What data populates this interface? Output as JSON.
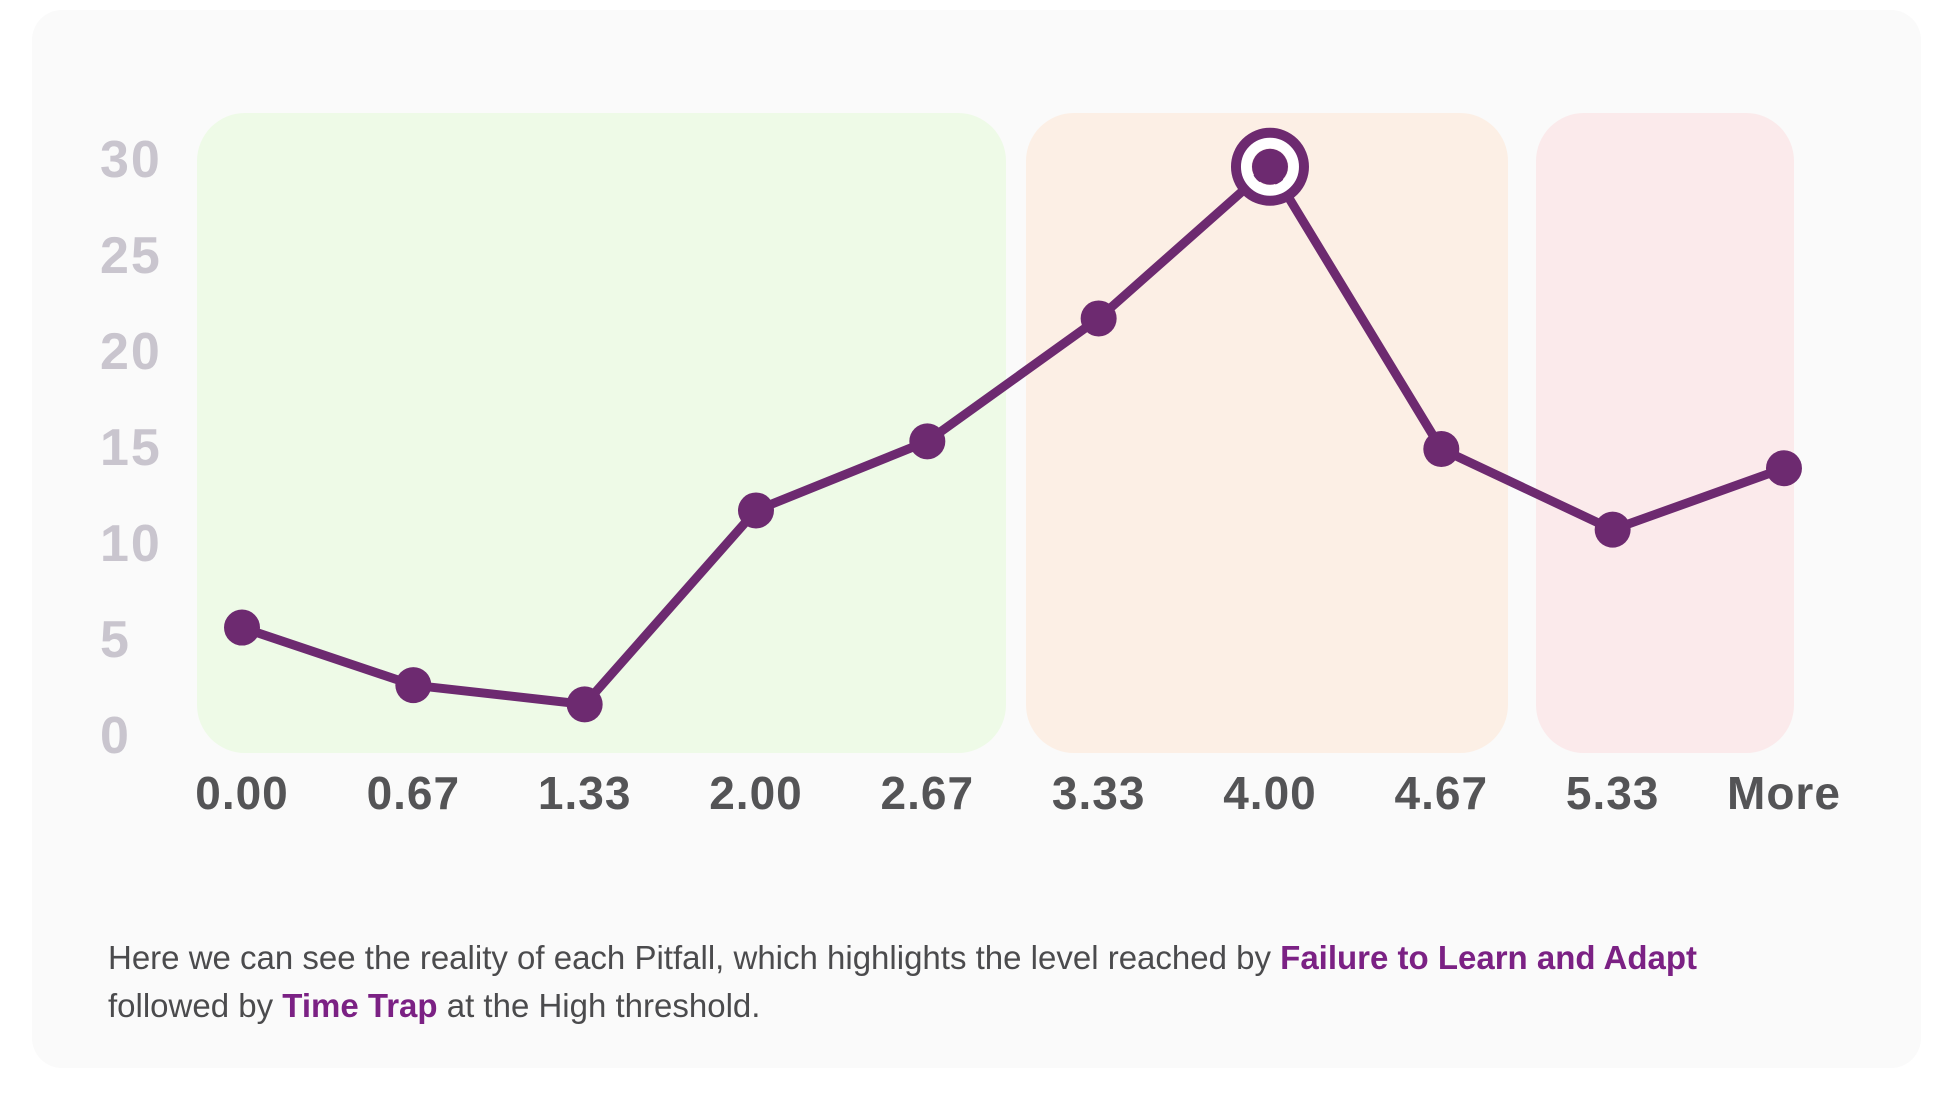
{
  "chart_data": {
    "type": "line",
    "categories": [
      "0.00",
      "0.67",
      "1.33",
      "2.00",
      "2.67",
      "3.33",
      "4.00",
      "4.67",
      "5.33",
      "More"
    ],
    "values": [
      5.7,
      2.7,
      1.7,
      11.8,
      15.4,
      21.8,
      29.7,
      15.0,
      10.8,
      14.0
    ],
    "highlight_index": 6,
    "highlight_category": "4.00",
    "y_ticks": [
      30,
      25,
      20,
      15,
      10,
      5,
      0
    ],
    "ylim": [
      0,
      30
    ],
    "grid": "off",
    "legend": "none",
    "series_color": "#6d2a70",
    "marker_radius": 18,
    "line_width": 9,
    "zones": [
      {
        "name": "low-threshold-zone",
        "color": "#eefae7",
        "from_category": "0.00",
        "to_category": "2.67"
      },
      {
        "name": "medium-threshold-zone",
        "color": "#fcefe5",
        "from_category": "3.33",
        "to_category": "4.67"
      },
      {
        "name": "high-threshold-zone",
        "color": "#fbeaeb",
        "from_category": "5.33",
        "to_category": "More"
      }
    ]
  },
  "caption": {
    "line1_text": "Here we can see the reality of each Pitfall, which highlights the level reached by ",
    "line1_highlight": "Failure to Learn and Adapt",
    "line2_prefix": "followed by ",
    "line2_highlight": "Time Trap",
    "line2_suffix": " at the High threshold."
  },
  "colors": {
    "card_background": "#fafafa",
    "page_background": "#ffffff",
    "series_purple": "#6d2a70",
    "caption_highlight_purple": "#7b2184",
    "y_tick_color": "#c9c5ce",
    "x_tick_color": "#545456",
    "caption_text_color": "#4b4b4d"
  }
}
